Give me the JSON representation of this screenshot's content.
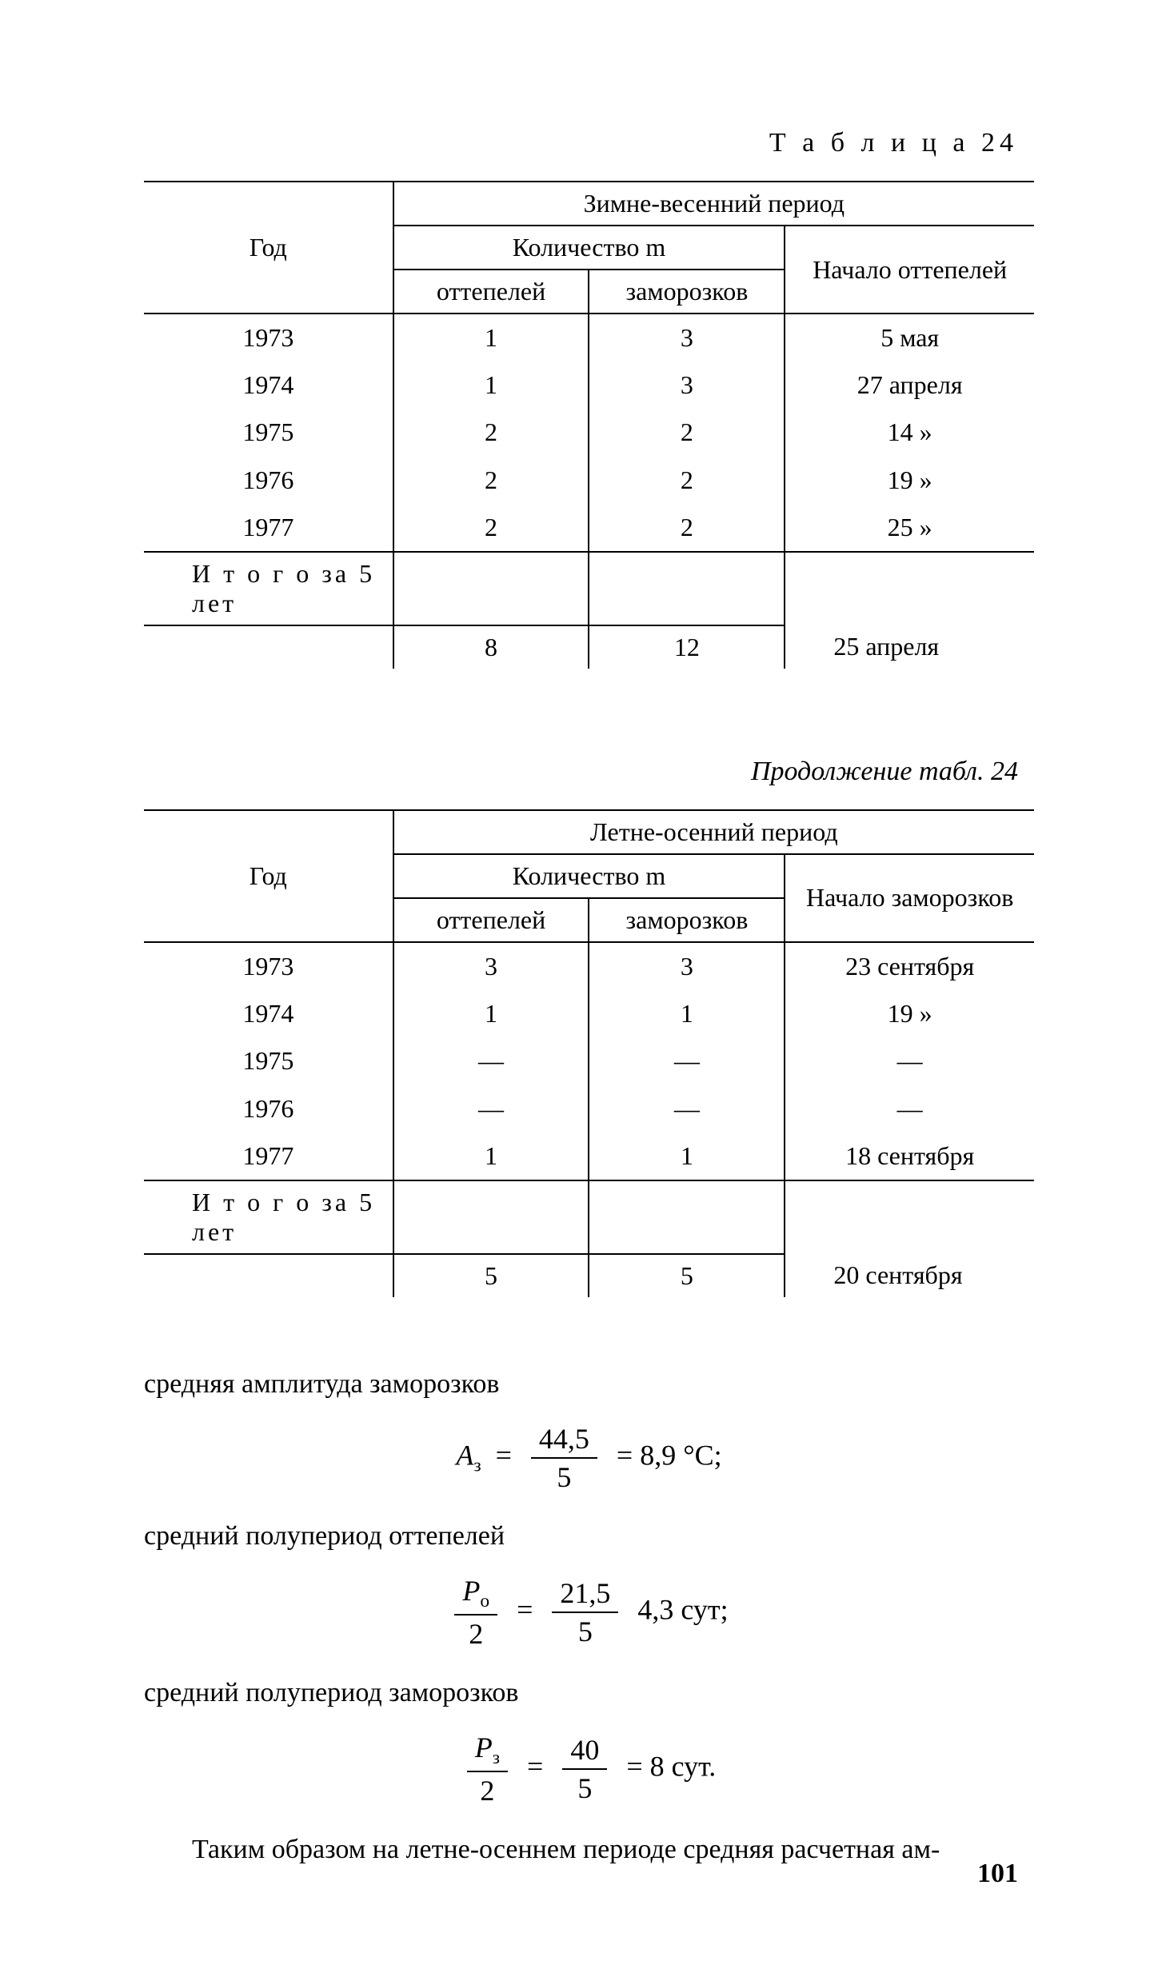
{
  "table_label": "Т а б л и ц а  24",
  "continuation_label": "Продолжение табл. 24",
  "table1": {
    "period_header": "Зимне-весенний период",
    "year_header": "Год",
    "qty_header": "Количество m",
    "sub_ott": "оттепелей",
    "sub_zam": "заморозков",
    "start_header": "Начало оттепелей",
    "years": [
      "1973",
      "1974",
      "1975",
      "1976",
      "1977"
    ],
    "ott": [
      "1",
      "1",
      "2",
      "2",
      "2"
    ],
    "zam": [
      "3",
      "3",
      "2",
      "2",
      "2"
    ],
    "starts": [
      "5 мая",
      "27 апреля",
      "14    »",
      "19    »",
      "25    »"
    ],
    "total_label": "И т о г о  за 5 лет",
    "total_ott": "8",
    "total_zam": "12",
    "total_start": "25 апреля"
  },
  "table2": {
    "period_header": "Летне-осенний период",
    "year_header": "Год",
    "qty_header": "Количество m",
    "sub_ott": "оттепелей",
    "sub_zam": "заморозков",
    "start_header": "Начало заморозков",
    "years": [
      "1973",
      "1974",
      "1975",
      "1976",
      "1977"
    ],
    "ott": [
      "3",
      "1",
      "—",
      "—",
      "1"
    ],
    "zam": [
      "3",
      "1",
      "—",
      "—",
      "1"
    ],
    "starts": [
      "23 сентября",
      "19    »",
      "—",
      "—",
      "18 сентября"
    ],
    "total_label": "И т о г о  за 5 лет",
    "total_ott": "5",
    "total_zam": "5",
    "total_start": "20 сентября"
  },
  "text": {
    "p1": "средняя амплитуда заморозков",
    "p2": "средний полупериод оттепелей",
    "p3": "средний полупериод заморозков",
    "p4": "Таким образом на летне-осеннем периоде средняя расчетная ам-"
  },
  "formulas": {
    "f1_lhs_var": "A",
    "f1_lhs_sub": "з",
    "f1_num": "44,5",
    "f1_den": "5",
    "f1_rhs": "8,9 °C;",
    "f2_num_var": "P",
    "f2_num_sub": "о",
    "f2_den2": "2",
    "f2_num": "21,5",
    "f2_den": "5",
    "f2_rhs": "4,3 сут;",
    "f3_num_var": "P",
    "f3_num_sub": "з",
    "f3_den2": "2",
    "f3_num": "40",
    "f3_den": "5",
    "f3_rhs": "8 сут."
  },
  "page_number": "101"
}
